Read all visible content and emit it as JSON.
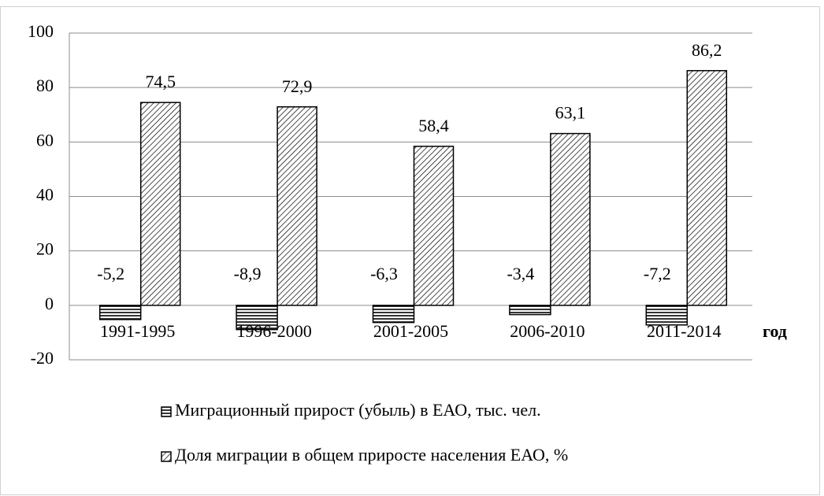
{
  "chart_data": {
    "type": "bar",
    "categories": [
      "1991-1995",
      "1996-2000",
      "2001-2005",
      "2006-2010",
      "2011-2014"
    ],
    "x_label": "год",
    "series": [
      {
        "name": "Миграционный прирост (убыль) в ЕАО, тыс. чел.",
        "color": "#000000",
        "pattern": "horizontal",
        "values": [
          -5.2,
          -8.9,
          -6.3,
          -3.4,
          -7.2
        ],
        "value_labels": [
          "-5,2",
          "-8,9",
          "-6,3",
          "-3,4",
          "-7,2"
        ]
      },
      {
        "name": "Доля миграции в общем приросте населения ЕАО, %",
        "color": "#000000",
        "pattern": "diagonal",
        "values": [
          74.5,
          72.9,
          58.4,
          63.1,
          86.2
        ],
        "value_labels": [
          "74,5",
          "72,9",
          "58,4",
          "63,1",
          "86,2"
        ]
      }
    ],
    "ylim": [
      -20,
      100
    ],
    "yticks": [
      -20,
      0,
      20,
      40,
      60,
      80,
      100
    ],
    "grid": true
  }
}
